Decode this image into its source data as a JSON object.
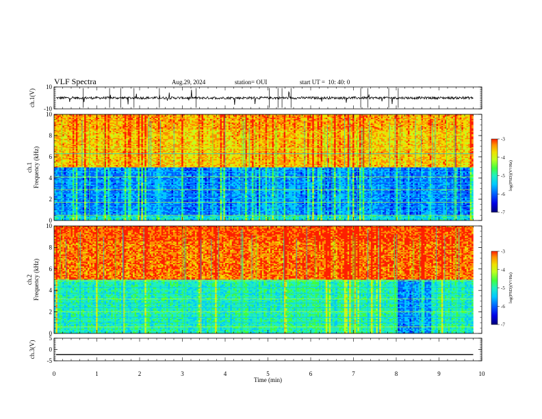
{
  "header": {
    "title": "VLF Spectra",
    "date": "Aug.29, 2024",
    "station": "station= OUI",
    "start": "start UT =  10: 40: 0"
  },
  "chart_data": [
    {
      "type": "line",
      "panel": "ch1-waveform",
      "ylabel": "ch.1(V)",
      "ylim": [
        -10,
        10
      ],
      "yticks": [
        "10",
        "-10"
      ],
      "xlim": [
        0,
        10
      ],
      "baseline": 0,
      "color": "#000000"
    },
    {
      "type": "heatmap",
      "panel": "ch1-spectrogram",
      "ylabel": "ch.1 Frequency (kHz)",
      "ylim": [
        0,
        10
      ],
      "yticks": [
        "0",
        "2",
        "4",
        "6",
        "8",
        "10"
      ],
      "xlim": [
        0,
        9.8
      ],
      "colorbar": {
        "label": "log(PSD)(V²/Hz)",
        "range": [
          -7,
          -3
        ],
        "ticks": [
          "-3",
          "-4",
          "-5",
          "-6",
          "-7"
        ]
      },
      "dark_band_khz": [
        0.5,
        5.0
      ]
    },
    {
      "type": "heatmap",
      "panel": "ch2-spectrogram",
      "ylabel": "ch.2 Frequency (kHz)",
      "ylim": [
        0,
        10
      ],
      "yticks": [
        "0",
        "2",
        "4",
        "6",
        "8",
        "10"
      ],
      "xlim": [
        0,
        9.8
      ],
      "colorbar": {
        "label": "log(PSD)(V²/Hz)",
        "range": [
          -7,
          -3
        ],
        "ticks": [
          "-3",
          "-4",
          "-5",
          "-6",
          "-7"
        ]
      },
      "dark_band_khz": [
        0.0,
        5.0
      ]
    },
    {
      "type": "line",
      "panel": "ch3-waveform",
      "ylabel": "ch.3(V)",
      "ylim": [
        -5,
        5
      ],
      "yticks": [
        "5",
        "0",
        "-5"
      ],
      "xlim": [
        0,
        10
      ],
      "baseline": -2.2,
      "color": "#000000"
    }
  ],
  "xaxis": {
    "label": "Time (min)",
    "ticks": [
      "0",
      "1",
      "2",
      "3",
      "4",
      "5",
      "6",
      "7",
      "8",
      "9",
      "10"
    ]
  },
  "colors": {
    "colormap": [
      "#00007a",
      "#0000e6",
      "#0060ff",
      "#00c8ff",
      "#20f0c0",
      "#40ff40",
      "#c0ff20",
      "#f0e000",
      "#ff9000",
      "#ff2000"
    ]
  }
}
